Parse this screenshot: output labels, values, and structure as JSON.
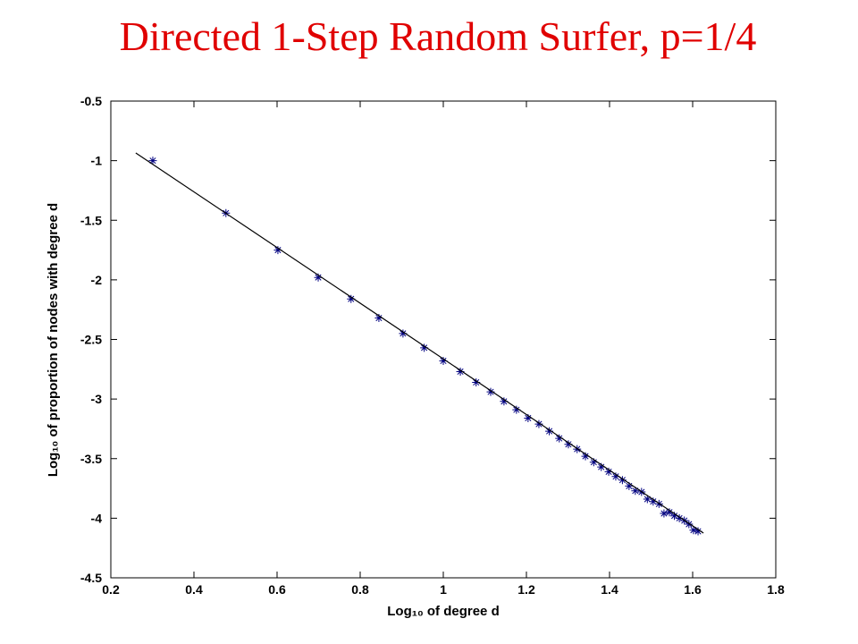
{
  "chart_data": {
    "type": "scatter",
    "title": "Directed 1-Step Random Surfer, p=1/4",
    "x_label": "Log₁₀ of degree d",
    "y_label": "Log₁₀ of proportion of nodes with degree d",
    "xlim": [
      0.2,
      1.8
    ],
    "ylim": [
      -4.5,
      -0.5
    ],
    "xticks": [
      0.2,
      0.4,
      0.6,
      0.8,
      1,
      1.2,
      1.4,
      1.6,
      1.8
    ],
    "yticks": [
      -0.5,
      -1,
      -1.5,
      -2,
      -2.5,
      -3,
      -3.5,
      -4,
      -4.5
    ],
    "series": [
      {
        "color": "#000080",
        "marker": "*",
        "x": [
          0.301,
          0.477,
          0.602,
          0.699,
          0.778,
          0.845,
          0.903,
          0.954,
          1.0,
          1.041,
          1.079,
          1.114,
          1.146,
          1.176,
          1.204,
          1.23,
          1.255,
          1.279,
          1.301,
          1.322,
          1.342,
          1.362,
          1.38,
          1.398,
          1.415,
          1.431,
          1.447,
          1.462,
          1.477,
          1.491,
          1.505,
          1.519,
          1.531,
          1.544,
          1.556,
          1.568,
          1.58,
          1.591,
          1.602,
          1.613
        ],
        "values": [
          -1.0,
          -1.44,
          -1.75,
          -1.98,
          -2.16,
          -2.32,
          -2.45,
          -2.57,
          -2.68,
          -2.77,
          -2.86,
          -2.94,
          -3.02,
          -3.09,
          -3.16,
          -3.21,
          -3.27,
          -3.33,
          -3.38,
          -3.42,
          -3.48,
          -3.53,
          -3.57,
          -3.61,
          -3.65,
          -3.68,
          -3.73,
          -3.77,
          -3.78,
          -3.84,
          -3.86,
          -3.88,
          -3.96,
          -3.95,
          -3.98,
          -4.0,
          -4.02,
          -4.05,
          -4.1,
          -4.11
        ]
      },
      {
        "color": "#000000",
        "marker": "line",
        "x": [
          0.26,
          1.626
        ],
        "values": [
          -0.935,
          -4.125
        ]
      }
    ]
  }
}
